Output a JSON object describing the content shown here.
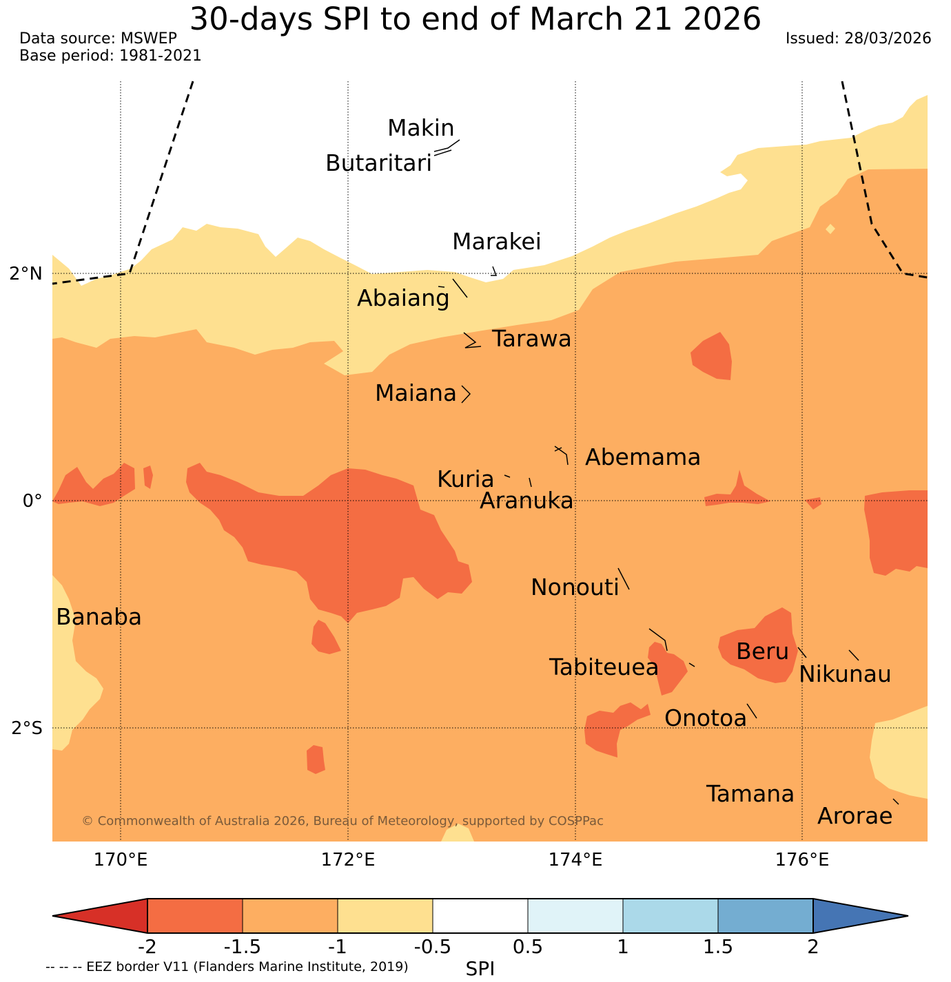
{
  "title": "30-days SPI to end of March 21 2026",
  "data_source": "Data source: MSWEP",
  "base_period": "Base period: 1981-2021",
  "issued": "Issued: 28/03/2026",
  "copyright": "© Commonwealth of Australia 2026, Bureau of Meteorology, supported by COSPPac",
  "eez_note": "-- -- -- EEZ border V11 (Flanders Marine Institute, 2019)",
  "map": {
    "lon_labels": [
      "170°E",
      "172°E",
      "174°E",
      "176°E"
    ],
    "lat_labels": [
      "2°N",
      "0°",
      "2°S"
    ],
    "places": [
      "Makin",
      "Butaritari",
      "Marakei",
      "Abaiang",
      "Tarawa",
      "Maiana",
      "Abemama",
      "Kuria",
      "Aranuka",
      "Nonouti",
      "Banaba",
      "Beru",
      "Tabiteuea",
      "Nikunau",
      "Onotoa",
      "Tamana",
      "Arorae"
    ]
  },
  "colorbar": {
    "label": "SPI",
    "ticks": [
      "-2",
      "-1.5",
      "-1",
      "-0.5",
      "0.5",
      "1",
      "1.5",
      "2"
    ],
    "colors": {
      "lt_-2": "#d73027",
      "-2_-1.5": "#f46d43",
      "-1.5_-1": "#fdae61",
      "-1_-0.5": "#fee090",
      "-0.5_0.5": "#ffffff",
      "0.5_1": "#e0f3f8",
      "1_1.5": "#abd9e9",
      "1.5_2": "#74add1",
      "gt_2": "#4575b4"
    }
  }
}
